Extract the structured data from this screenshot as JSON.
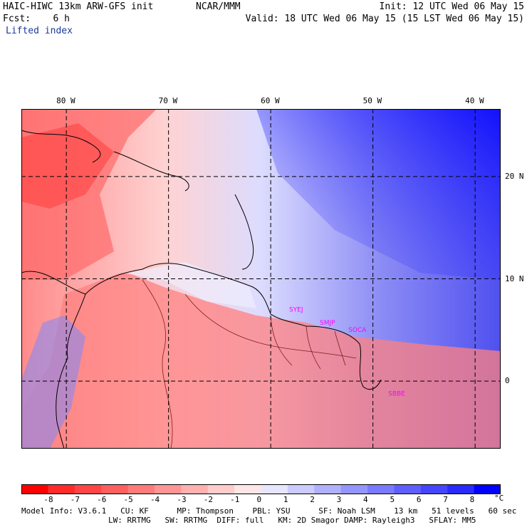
{
  "header": {
    "title_left": "HAIC-HIWC 13km ARW-GFS init",
    "org": "NCAR/MMM",
    "init": "Init: 12 UTC Wed 06 May 15",
    "fcst": "Fcst:    6 h",
    "valid": "Valid: 18 UTC Wed 06 May 15 (15 LST Wed 06 May 15)",
    "field": "Lifted index"
  },
  "map": {
    "lon_labels": [
      "80 W",
      "70 W",
      "60 W",
      "50 W",
      "40 W"
    ],
    "lon_values": [
      -80,
      -70,
      -60,
      -50,
      -40
    ],
    "lat_labels": [
      "20 N",
      "10 N",
      "0"
    ],
    "lat_values": [
      20,
      10,
      0
    ],
    "lon_range": [
      -84.4,
      -37.5
    ],
    "lat_range": [
      -6.6,
      26.6
    ],
    "stations": [
      {
        "label": "SYEJ",
        "lon": -58.2,
        "lat": 6.8
      },
      {
        "label": "SMJP",
        "lon": -55.2,
        "lat": 5.5
      },
      {
        "label": "SOCA",
        "lon": -52.4,
        "lat": 4.8
      },
      {
        "label": "SBBE",
        "lon": -48.5,
        "lat": -1.4
      }
    ],
    "station_color": "#ff00ff"
  },
  "colorbar": {
    "labels": [
      "-8",
      "-7",
      "-6",
      "-5",
      "-4",
      "-3",
      "-2",
      "-1",
      "0",
      "1",
      "2",
      "3",
      "4",
      "5",
      "6",
      "7",
      "8"
    ],
    "unit": "°C",
    "colors": [
      "#ff0000",
      "#ff2a2a",
      "#ff4545",
      "#ff5f5f",
      "#ff7a7a",
      "#ff9595",
      "#ffb0b0",
      "#ffcbcb",
      "#ffe6e6",
      "#e6e6ff",
      "#cbcbff",
      "#b0b0ff",
      "#9595ff",
      "#7a7aff",
      "#5f5fff",
      "#4545ff",
      "#2a2aff",
      "#0000ff"
    ]
  },
  "footer": {
    "line1": "Model Info: V3.6.1   CU: KF      MP: Thompson    PBL: YSU      SF: Noah LSM    13 km   51 levels   60 sec",
    "line2": "LW: RRTMG   SW: RRTMG  DIFF: full   KM: 2D Smagor DAMP: Rayleigh3   SFLAY: MM5"
  }
}
